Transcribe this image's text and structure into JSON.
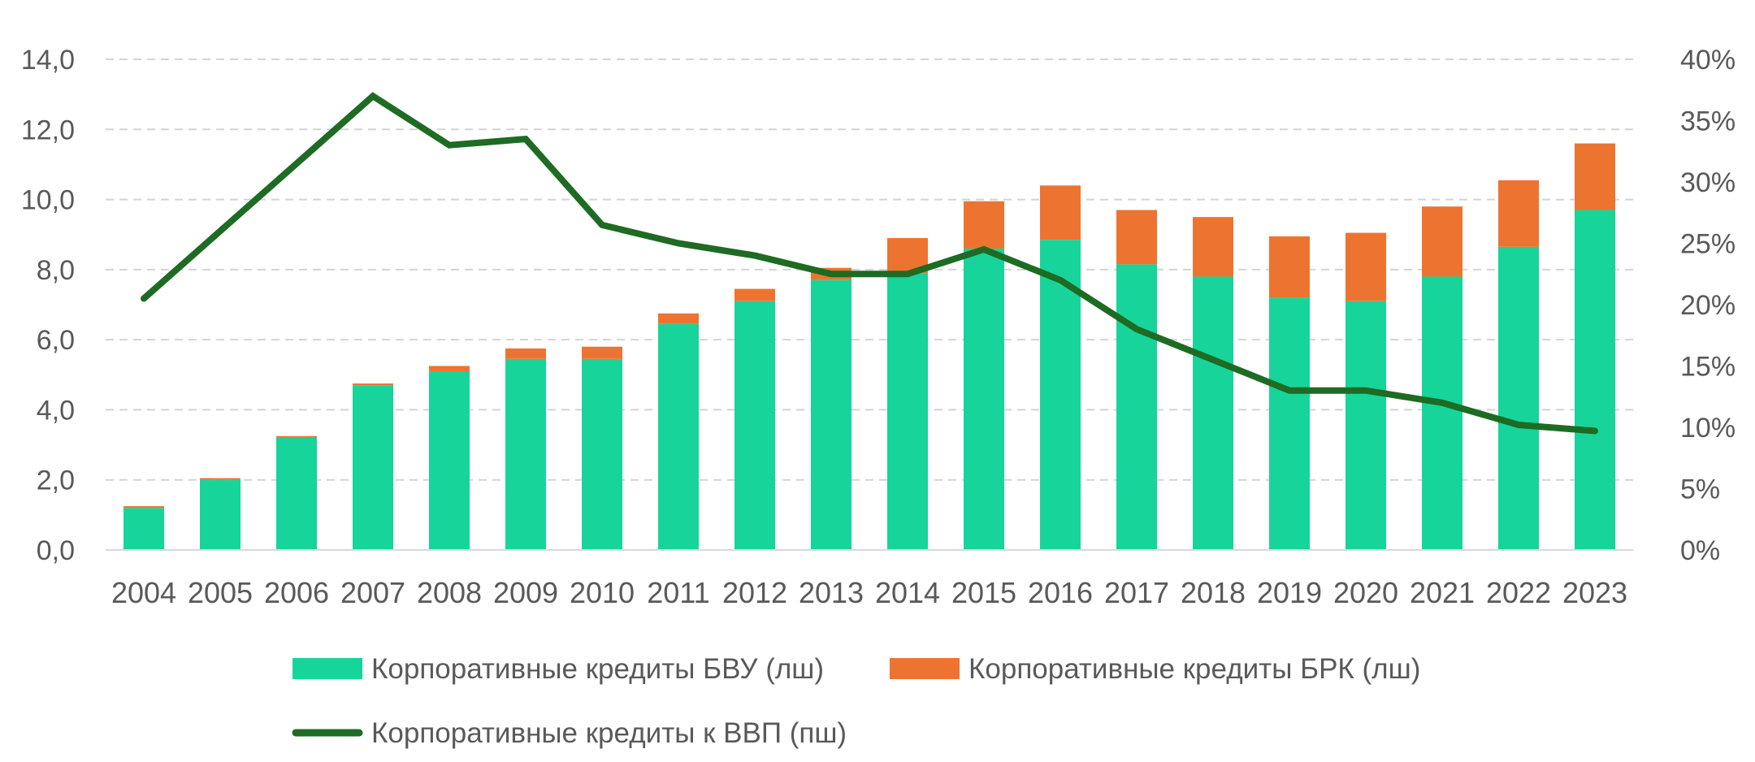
{
  "chart_data": {
    "type": "bar",
    "stacked": true,
    "categories": [
      "2004",
      "2005",
      "2006",
      "2007",
      "2008",
      "2009",
      "2010",
      "2011",
      "2012",
      "2013",
      "2014",
      "2015",
      "2016",
      "2017",
      "2018",
      "2019",
      "2020",
      "2021",
      "2022",
      "2023"
    ],
    "series": [
      {
        "name": "Корпоративные кредиты БВУ (лш)",
        "type": "bar",
        "axis": "left",
        "color": "#17d49b",
        "values": [
          1.2,
          2.0,
          3.2,
          4.7,
          5.1,
          5.45,
          5.45,
          6.45,
          7.1,
          7.7,
          7.9,
          8.6,
          8.85,
          8.15,
          7.8,
          7.2,
          7.1,
          7.8,
          8.65,
          9.7
        ]
      },
      {
        "name": "Корпоративные кредиты БРК (лш)",
        "type": "bar",
        "axis": "left",
        "color": "#ed7430",
        "values": [
          0.05,
          0.05,
          0.05,
          0.05,
          0.15,
          0.3,
          0.35,
          0.3,
          0.35,
          0.35,
          1.0,
          1.35,
          1.55,
          1.55,
          1.7,
          1.75,
          1.95,
          2.0,
          1.9,
          1.9
        ]
      },
      {
        "name": "Корпоративные кредиты к ВВП (пш)",
        "type": "line",
        "axis": "right",
        "color": "#1e6b23",
        "values": [
          20.5,
          26.0,
          31.5,
          37.0,
          33.0,
          33.5,
          26.5,
          25.0,
          24.0,
          22.5,
          22.5,
          24.5,
          22.0,
          18.0,
          15.5,
          13.0,
          13.0,
          12.0,
          10.2,
          9.7
        ]
      }
    ],
    "y_left": {
      "ylim": [
        0,
        14
      ],
      "ticks": [
        "0,0",
        "2,0",
        "4,0",
        "6,0",
        "8,0",
        "10,0",
        "12,0",
        "14,0"
      ]
    },
    "y_right": {
      "ylim": [
        0,
        40
      ],
      "ticks": [
        "0%",
        "5%",
        "10%",
        "15%",
        "20%",
        "25%",
        "30%",
        "35%",
        "40%"
      ]
    },
    "grid": true,
    "legend_position": "bottom",
    "title": "",
    "xlabel": "",
    "ylabel": ""
  }
}
